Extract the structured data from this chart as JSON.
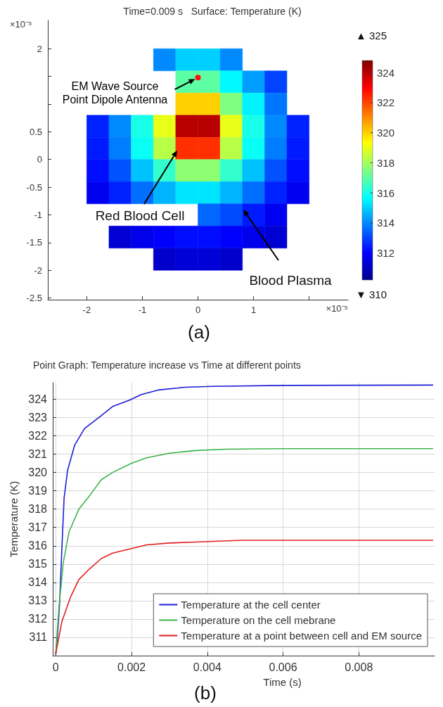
{
  "chart_data": [
    {
      "type": "heatmap",
      "title": "Time=0.009 s   Surface: Temperature (K)",
      "xlabel": "×10⁻⁵",
      "ylabel": "×10⁻⁵",
      "x": [
        -1.8,
        -1.4,
        -1.0,
        -0.6,
        -0.2,
        0.2,
        0.6,
        1.0,
        1.4,
        1.8
      ],
      "y": [
        1.8,
        1.4,
        1.0,
        0.6,
        0.2,
        -0.2,
        -0.6,
        -1.0,
        -1.4,
        -1.8
      ],
      "cells": [
        [
          null,
          null,
          null,
          314,
          315,
          315,
          314,
          null,
          null,
          null
        ],
        [
          null,
          null,
          null,
          null,
          317,
          317,
          315.6,
          314.3,
          313,
          null
        ],
        [
          null,
          null,
          null,
          null,
          320,
          320,
          317.5,
          315.5,
          313.7,
          null
        ],
        [
          312.5,
          314,
          316,
          319,
          324,
          324,
          319,
          316,
          314,
          312.5
        ],
        [
          312.4,
          313.8,
          315.8,
          318.3,
          322.3,
          322.3,
          318.3,
          315.8,
          313.8,
          312.4
        ],
        [
          312.2,
          313.2,
          314.8,
          316.4,
          317.7,
          317.7,
          316.4,
          314.8,
          313.2,
          312.2
        ],
        [
          311.8,
          312.5,
          313.6,
          314.6,
          315.3,
          315.3,
          314.6,
          313.6,
          312.5,
          311.8
        ],
        [
          null,
          null,
          null,
          null,
          null,
          313.5,
          313.1,
          312.4,
          311.8,
          null
        ],
        [
          null,
          311.3,
          311.7,
          312,
          312.2,
          312.2,
          312,
          311.7,
          311.3,
          null
        ],
        [
          null,
          null,
          null,
          311.2,
          311.4,
          311.4,
          311.2,
          null,
          null,
          null
        ]
      ],
      "xlim": [
        -2.7,
        2.7
      ],
      "xticks": [
        -2,
        -1,
        0,
        1,
        {
          "value": 2,
          "label": null
        }
      ],
      "ylim": [
        -2.53,
        2.51
      ],
      "yticks": [
        -2.5,
        -2,
        -1.5,
        -1,
        -0.5,
        0,
        0.5,
        {
          "value": 1,
          "label": null
        },
        {
          "value": 1.5,
          "label": null
        },
        2
      ],
      "clim": [
        310.2,
        324.8
      ],
      "cticks": [
        312,
        314,
        316,
        318,
        320,
        322,
        324
      ],
      "annotations": [
        {
          "text": "EM Wave Source\nPoint Dipole Antenna",
          "x": 0,
          "y": 1.48
        },
        "Red Blood Cell",
        "Blood Plasma",
        "▲ 325",
        "▼ 310",
        "(a)"
      ]
    },
    {
      "type": "line",
      "title": "Point Graph: Temperature increase vs Time at different points",
      "xlabel": "Time (s)",
      "ylabel": "Temperature (K)",
      "series": [
        {
          "name": "Temperature at the cell center",
          "color": "#1c1cd8",
          "x": [
            0,
            5e-05,
            0.0001,
            0.00016,
            0.00022,
            0.00031,
            0.0005,
            0.00076,
            0.0012,
            0.0015,
            0.00195,
            0.00225,
            0.0027,
            0.0034,
            0.0041,
            0.006,
            0.00995
          ],
          "values": [
            310.1,
            311.2,
            312.8,
            315.8,
            318.6,
            320.1,
            321.5,
            322.4,
            323.1,
            323.6,
            323.95,
            324.25,
            324.5,
            324.65,
            324.7,
            324.75,
            324.77
          ]
        },
        {
          "name": "Temperature on the cell mebrane",
          "color": "#3cb44b",
          "x": [
            0,
            9e-05,
            0.0002,
            0.00035,
            0.00061,
            0.0009,
            0.0012,
            0.0015,
            0.002,
            0.0024,
            0.003,
            0.0037,
            0.0045,
            0.006,
            0.00995
          ],
          "values": [
            310.1,
            312.8,
            315.1,
            316.75,
            318,
            318.75,
            319.6,
            320,
            320.5,
            320.8,
            321.05,
            321.2,
            321.27,
            321.3,
            321.3
          ]
        },
        {
          "name": "Temperature at a point between cell and EM source",
          "color": "#e02020",
          "x": [
            0,
            0.00016,
            0.00039,
            0.00061,
            0.0009,
            0.0012,
            0.0015,
            0.002,
            0.0024,
            0.003,
            0.0037,
            0.0049,
            0.00995
          ],
          "values": [
            310.1,
            311.85,
            313.2,
            314.15,
            314.75,
            315.3,
            315.6,
            315.85,
            316.05,
            316.15,
            316.2,
            316.3,
            316.3
          ]
        }
      ],
      "xlim": [
        -8e-05,
        0.01
      ],
      "xticks": [
        0,
        0.002,
        0.004,
        0.006,
        0.008
      ],
      "ylim": [
        310,
        324.9
      ],
      "yticks": [
        311,
        312,
        313,
        314,
        315,
        316,
        317,
        318,
        319,
        320,
        321,
        322,
        323,
        324
      ],
      "grid": true,
      "legend": "bottom right",
      "annotations": [
        "(b)"
      ]
    }
  ]
}
